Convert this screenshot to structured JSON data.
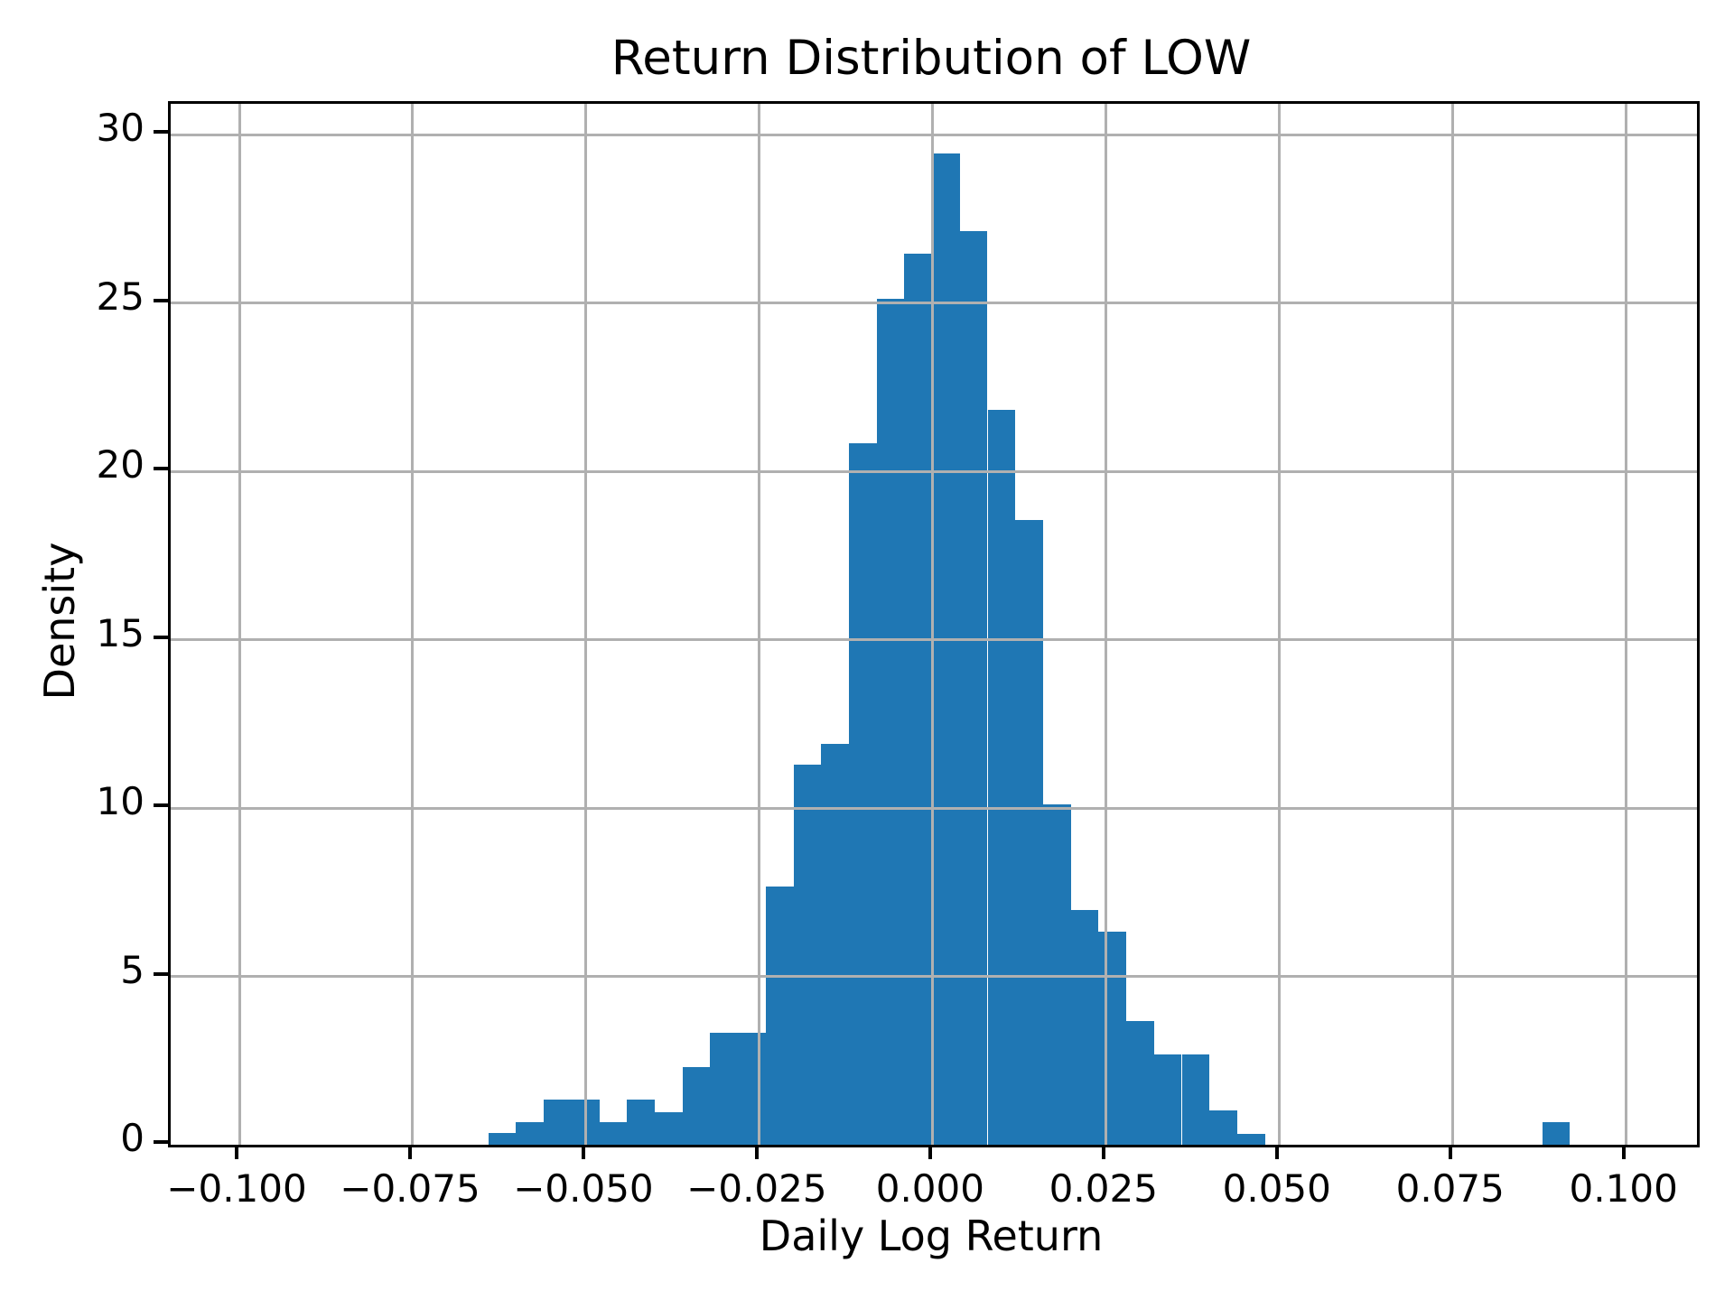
{
  "title": "Return Distribution of LOW",
  "axes": {
    "xlabel": "Daily Log Return",
    "ylabel": "Density"
  },
  "x_ticks": [
    {
      "value": -0.1,
      "label": "−0.100"
    },
    {
      "value": -0.075,
      "label": "−0.075"
    },
    {
      "value": -0.05,
      "label": "−0.050"
    },
    {
      "value": -0.025,
      "label": "−0.025"
    },
    {
      "value": 0.0,
      "label": "0.000"
    },
    {
      "value": 0.025,
      "label": "0.025"
    },
    {
      "value": 0.05,
      "label": "0.050"
    },
    {
      "value": 0.075,
      "label": "0.075"
    },
    {
      "value": 0.1,
      "label": "0.100"
    }
  ],
  "y_ticks": [
    {
      "value": 0,
      "label": "0"
    },
    {
      "value": 5,
      "label": "5"
    },
    {
      "value": 10,
      "label": "10"
    },
    {
      "value": 15,
      "label": "15"
    },
    {
      "value": 20,
      "label": "20"
    },
    {
      "value": 25,
      "label": "25"
    },
    {
      "value": 30,
      "label": "30"
    }
  ],
  "colors": {
    "bar": "#1f77b4",
    "grid": "#b0b0b0",
    "spine": "#000000",
    "background": "#ffffff",
    "text": "#000000"
  },
  "chart_data": {
    "type": "bar",
    "subtype": "histogram",
    "title": "Return Distribution of LOW",
    "xlabel": "Daily Log Return",
    "ylabel": "Density",
    "bin_start": -0.0641,
    "bin_width": 0.004,
    "n_bins": 39,
    "densities": [
      0.34,
      0.67,
      1.34,
      1.34,
      0.67,
      1.34,
      0.96,
      2.31,
      3.33,
      3.33,
      7.66,
      11.29,
      11.9,
      20.84,
      25.12,
      26.46,
      29.45,
      27.13,
      21.83,
      18.56,
      10.1,
      6.96,
      6.33,
      3.68,
      2.67,
      2.67,
      1.02,
      0.33,
      0,
      0,
      0,
      0,
      0,
      0,
      0,
      0,
      0,
      0,
      0.66
    ],
    "xlim": [
      -0.1099,
      0.1102
    ],
    "ylim": [
      0,
      30.92
    ],
    "grid": true,
    "grid_above_bars": true,
    "legend": null
  }
}
